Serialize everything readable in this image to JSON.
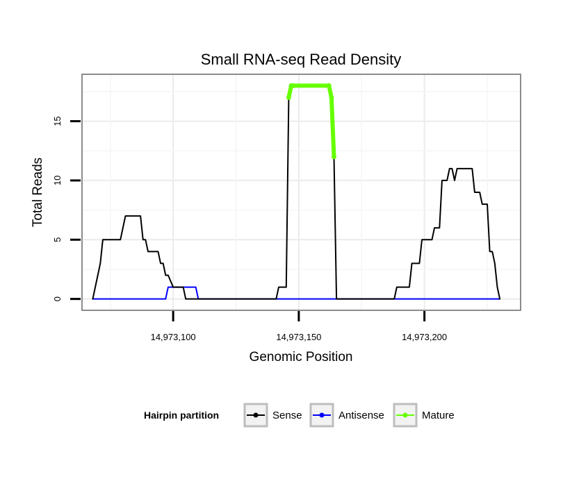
{
  "chart_data": {
    "type": "line",
    "title": "Small RNA-seq Read Density",
    "xlabel": "Genomic Position",
    "ylabel": "Total Reads",
    "xlim": [
      14973064,
      14973238
    ],
    "ylim": [
      -0.9,
      18.9
    ],
    "x_ticks": [
      14973100,
      14973150,
      14973200
    ],
    "x_tick_labels": [
      "14,973,100",
      "14,973,150",
      "14,973,200"
    ],
    "y_ticks": [
      0,
      5,
      10,
      15
    ],
    "y_tick_labels": [
      "0",
      "5",
      "10",
      "15"
    ],
    "grid": true,
    "legend": {
      "title": "Hairpin partition",
      "placement": "bottom",
      "entries": [
        {
          "name": "Sense",
          "color": "#000000"
        },
        {
          "name": "Antisense",
          "color": "#0000ff"
        },
        {
          "name": "Mature",
          "color": "#66ff00"
        }
      ]
    },
    "series": [
      {
        "name": "Sense",
        "color": "#000000",
        "x": [
          14973068,
          14973070,
          14973071,
          14973072,
          14973079,
          14973080,
          14973081,
          14973087,
          14973088,
          14973089,
          14973090,
          14973092,
          14973093,
          14973094,
          14973095,
          14973096,
          14973097,
          14973098,
          14973100,
          14973104,
          14973105,
          14973115,
          14973115.5,
          14973141,
          14973142,
          14973145,
          14973146,
          14973147,
          14973148,
          14973162,
          14973163,
          14973164,
          14973165,
          14973166,
          14973167,
          14973168,
          14973188,
          14973189,
          14973194,
          14973195,
          14973198,
          14973199,
          14973203,
          14973204,
          14973206,
          14973207,
          14973208,
          14973209,
          14973210,
          14973211,
          14973212,
          14973213,
          14973219,
          14973220,
          14973222,
          14973223,
          14973225,
          14973226,
          14973227,
          14973228,
          14973229,
          14973230
        ],
        "values": [
          0,
          2,
          3,
          5,
          5,
          6,
          7,
          7,
          5,
          5,
          4,
          4,
          4,
          4,
          3,
          3,
          2,
          2,
          1,
          1,
          0,
          0,
          0,
          0,
          1,
          1,
          17,
          18,
          18,
          18,
          17,
          12,
          0,
          0,
          0,
          0,
          0,
          1,
          1,
          3,
          3,
          5,
          5,
          6,
          6,
          10,
          10,
          10,
          11,
          11,
          10,
          11,
          11,
          9,
          9,
          8,
          8,
          4,
          4,
          3,
          1,
          0
        ]
      },
      {
        "name": "Antisense",
        "color": "#0000ff",
        "x": [
          14973068,
          14973097,
          14973098,
          14973109,
          14973110,
          14973230
        ],
        "values": [
          0,
          0,
          1,
          1,
          0,
          0
        ]
      },
      {
        "name": "Mature",
        "color": "#66ff00",
        "x": [
          14973146,
          14973147,
          14973148,
          14973162,
          14973163,
          14973164
        ],
        "values": [
          17,
          18,
          18,
          18,
          17,
          12
        ]
      }
    ]
  }
}
